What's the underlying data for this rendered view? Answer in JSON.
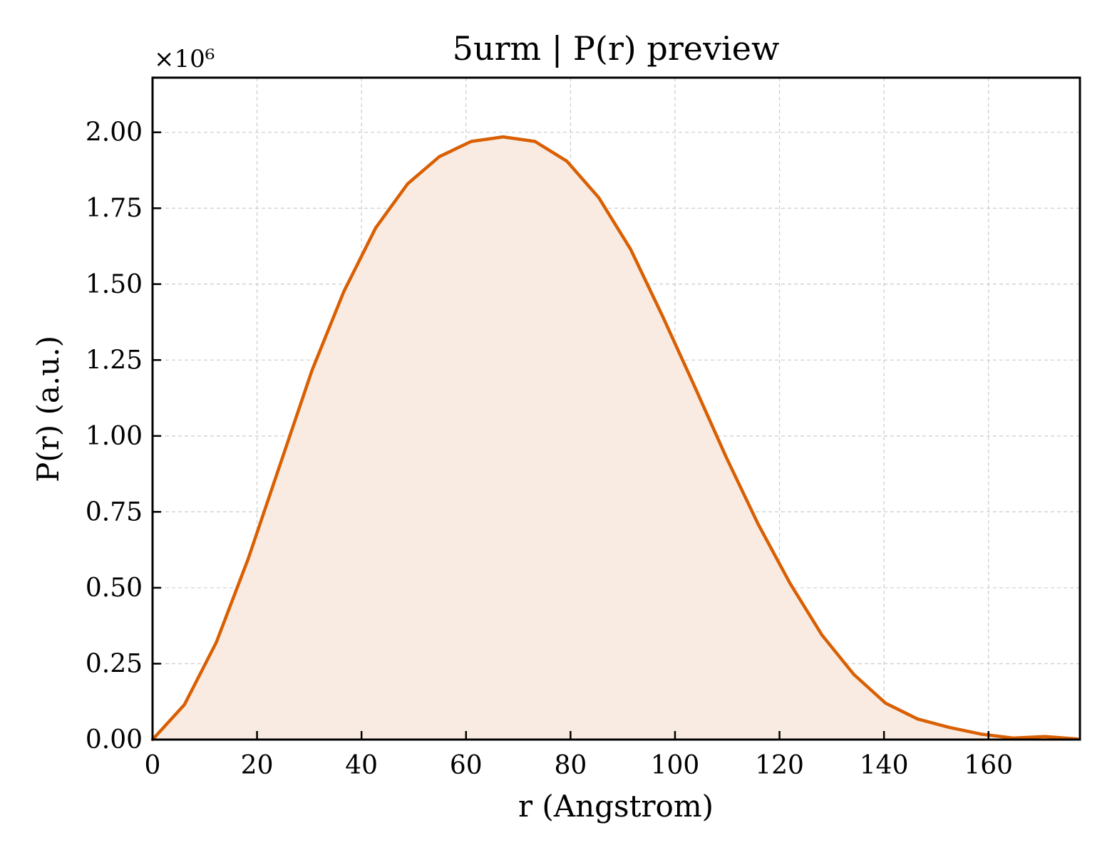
{
  "chart_data": {
    "type": "area",
    "title": "5urm | P(r) preview",
    "xlabel": "r (Angstrom)",
    "ylabel": "P(r) (a.u.)",
    "y_scale_label": "×10⁶",
    "xlim": [
      0,
      177.5
    ],
    "ylim": [
      0,
      2.18
    ],
    "y_unit_multiplier": 1000000,
    "xticks": [
      0,
      20,
      40,
      60,
      80,
      100,
      120,
      140,
      160
    ],
    "xtick_labels": [
      "0",
      "20",
      "40",
      "60",
      "80",
      "100",
      "120",
      "140",
      "160"
    ],
    "yticks": [
      0,
      0.25,
      0.5,
      0.75,
      1.0,
      1.25,
      1.5,
      1.75,
      2.0
    ],
    "ytick_labels": [
      "0.00",
      "0.25",
      "0.50",
      "0.75",
      "1.00",
      "1.25",
      "1.50",
      "1.75",
      "2.00"
    ],
    "grid": true,
    "line_color": "#d95f02",
    "fill_color": "#f9ebe1",
    "series": [
      {
        "x": [
          0,
          6.1,
          12.2,
          18.3,
          24.4,
          30.5,
          36.6,
          42.7,
          48.8,
          54.9,
          61.0,
          67.1,
          73.2,
          79.3,
          85.4,
          91.5,
          97.6,
          103.7,
          109.8,
          115.9,
          122.0,
          128.1,
          134.2,
          140.3,
          146.4,
          152.5,
          158.6,
          164.7,
          170.8,
          177.0
        ],
        "y": [
          0.0,
          0.115,
          0.32,
          0.595,
          0.905,
          1.215,
          1.475,
          1.685,
          1.83,
          1.92,
          1.97,
          1.985,
          1.97,
          1.905,
          1.785,
          1.615,
          1.395,
          1.165,
          0.93,
          0.71,
          0.515,
          0.345,
          0.215,
          0.12,
          0.068,
          0.04,
          0.018,
          0.005,
          0.01,
          0.002
        ]
      }
    ]
  }
}
